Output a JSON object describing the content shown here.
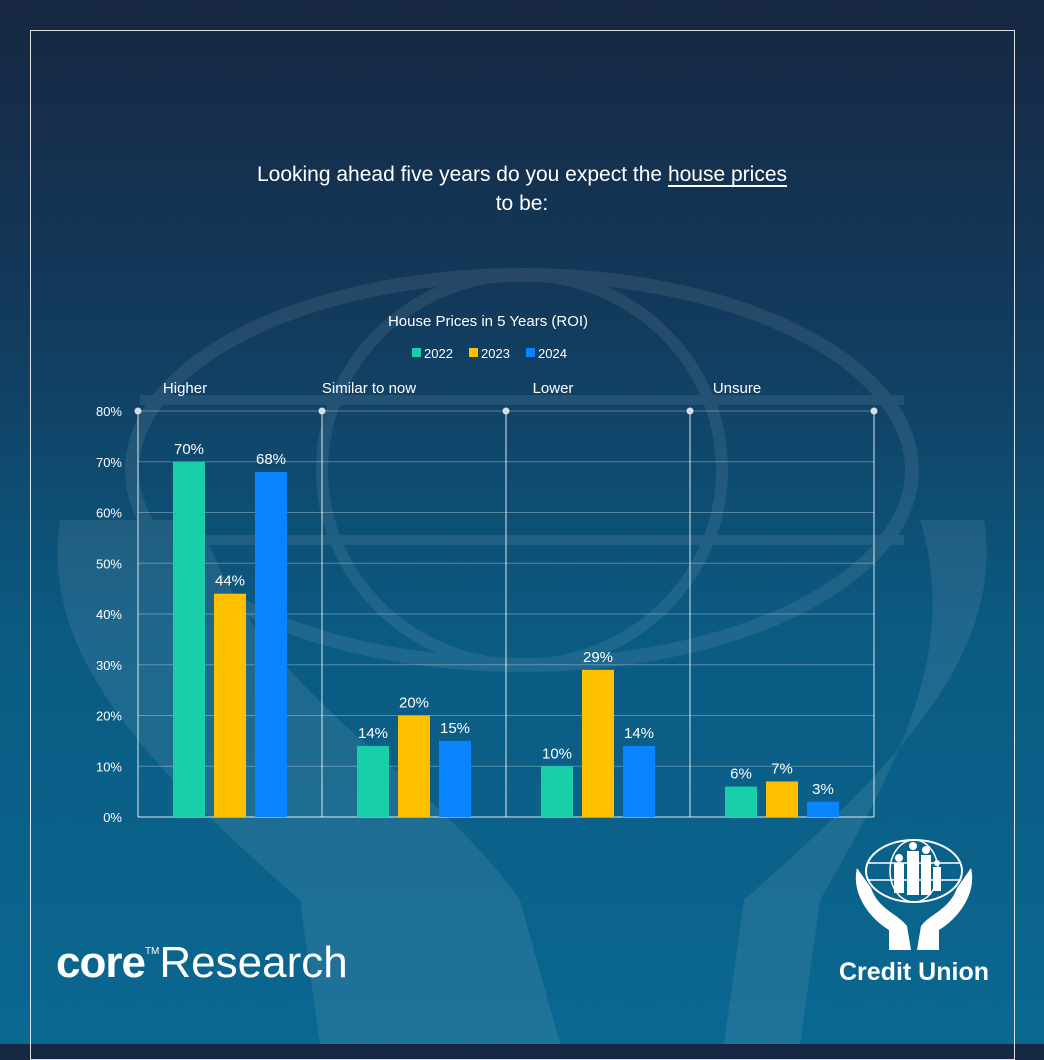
{
  "header": {
    "title_before": "Looking ahead five years do you expect the",
    "title_underlined": "house prices",
    "title_after": "to be:"
  },
  "chart_data": {
    "type": "bar",
    "title": "House Prices in 5 Years (ROI)",
    "categories": [
      "Higher",
      "Similar to now",
      "Lower",
      "Unsure"
    ],
    "series": [
      {
        "name": "2022",
        "color": "#18cfa9",
        "values": [
          70,
          14,
          10,
          6
        ]
      },
      {
        "name": "2023",
        "color": "#ffc000",
        "values": [
          44,
          20,
          29,
          7
        ]
      },
      {
        "name": "2024",
        "color": "#0a84ff",
        "values": [
          68,
          15,
          14,
          3
        ]
      }
    ],
    "data_labels": [
      [
        "70%",
        "14%",
        "10%",
        "6%"
      ],
      [
        "44%",
        "20%",
        "29%",
        "7%"
      ],
      [
        "68%",
        "15%",
        "14%",
        "3%"
      ]
    ],
    "yticks": [
      "0%",
      "10%",
      "20%",
      "30%",
      "40%",
      "50%",
      "60%",
      "70%",
      "80%"
    ],
    "ylim": [
      0,
      80
    ],
    "xlabel": "",
    "ylabel": "",
    "legend_position": "top-center",
    "grid": true
  },
  "branding": {
    "core_bold": "core",
    "core_tm": "TM",
    "core_research": "Research",
    "credit_union": "Credit Union"
  }
}
